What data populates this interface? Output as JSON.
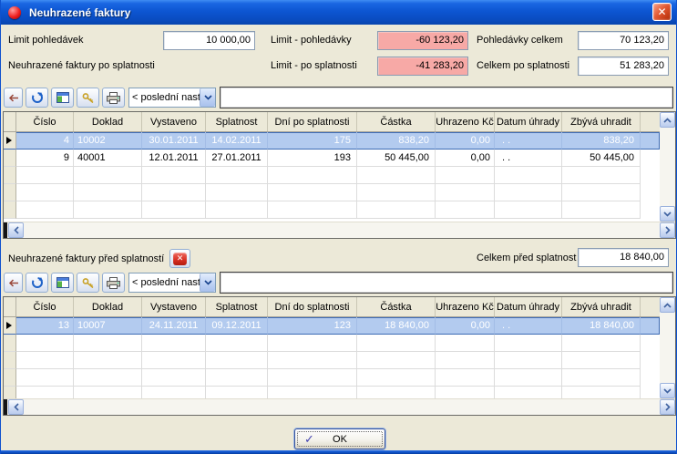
{
  "window": {
    "title": "Neuhrazené faktury",
    "close_glyph": "✕"
  },
  "summary": {
    "limit_pohledavek_label": "Limit pohledávek",
    "limit_pohledavek_value": "10 000,00",
    "limit_pohledavky_label": "Limit - pohledávky",
    "limit_pohledavky_value": "-60 123,20",
    "pohledavky_celkem_label": "Pohledávky celkem",
    "pohledavky_celkem_value": "70 123,20",
    "po_splatnosti_label": "Neuhrazené faktury po splatnosti",
    "limit_po_splatnosti_label": "Limit - po splatnosti",
    "limit_po_splatnosti_value": "-41 283,20",
    "celkem_po_splatnosti_label": "Celkem po splatnosti",
    "celkem_po_splatnosti_value": "51 283,20"
  },
  "toolbar": {
    "preset_value": "< poslední nastaví",
    "filter_value": ""
  },
  "table_overdue": {
    "columns": [
      "Číslo",
      "Doklad",
      "Vystaveno",
      "Splatnost",
      "Dní po splatnosti",
      "Částka",
      "Uhrazeno Kč",
      "Datum úhrady",
      "Zbývá uhradit"
    ],
    "rows": [
      {
        "cislo": "4",
        "doklad": "10002",
        "vystaveno": "30.01.2011",
        "splatnost": "14.02.2011",
        "dni": "175",
        "castka": "838,20",
        "uhrazeno": "0,00",
        "datum_uhrady": ".  .",
        "zbyva": "838,20"
      },
      {
        "cislo": "9",
        "doklad": "40001",
        "vystaveno": "12.01.2011",
        "splatnost": "27.01.2011",
        "dni": "193",
        "castka": "50 445,00",
        "uhrazeno": "0,00",
        "datum_uhrady": ".  .",
        "zbyva": "50 445,00"
      }
    ]
  },
  "section_before": {
    "label": "Neuhrazené faktury před splatností",
    "celkem_label": "Celkem před splatnost",
    "celkem_value": "18 840,00"
  },
  "table_before": {
    "columns": [
      "Číslo",
      "Doklad",
      "Vystaveno",
      "Splatnost",
      "Dní do splatnosti",
      "Částka",
      "Uhrazeno Kč",
      "Datum úhrady",
      "Zbývá uhradit"
    ],
    "rows": [
      {
        "cislo": "13",
        "doklad": "10007",
        "vystaveno": "24.11.2011",
        "splatnost": "09.12.2011",
        "dni": "123",
        "castka": "18 840,00",
        "uhrazeno": "0,00",
        "datum_uhrady": ".  .",
        "zbyva": "18 840,00"
      }
    ]
  },
  "footer": {
    "ok_label": "OK"
  },
  "colors": {
    "titlebar_blue": "#0d56d2",
    "dialog_bg": "#ECE9D8",
    "negative_field_pink": "#f7a9a6",
    "selected_row_blue": "#b3cbef",
    "selected_row_border": "#3e6cb5"
  }
}
